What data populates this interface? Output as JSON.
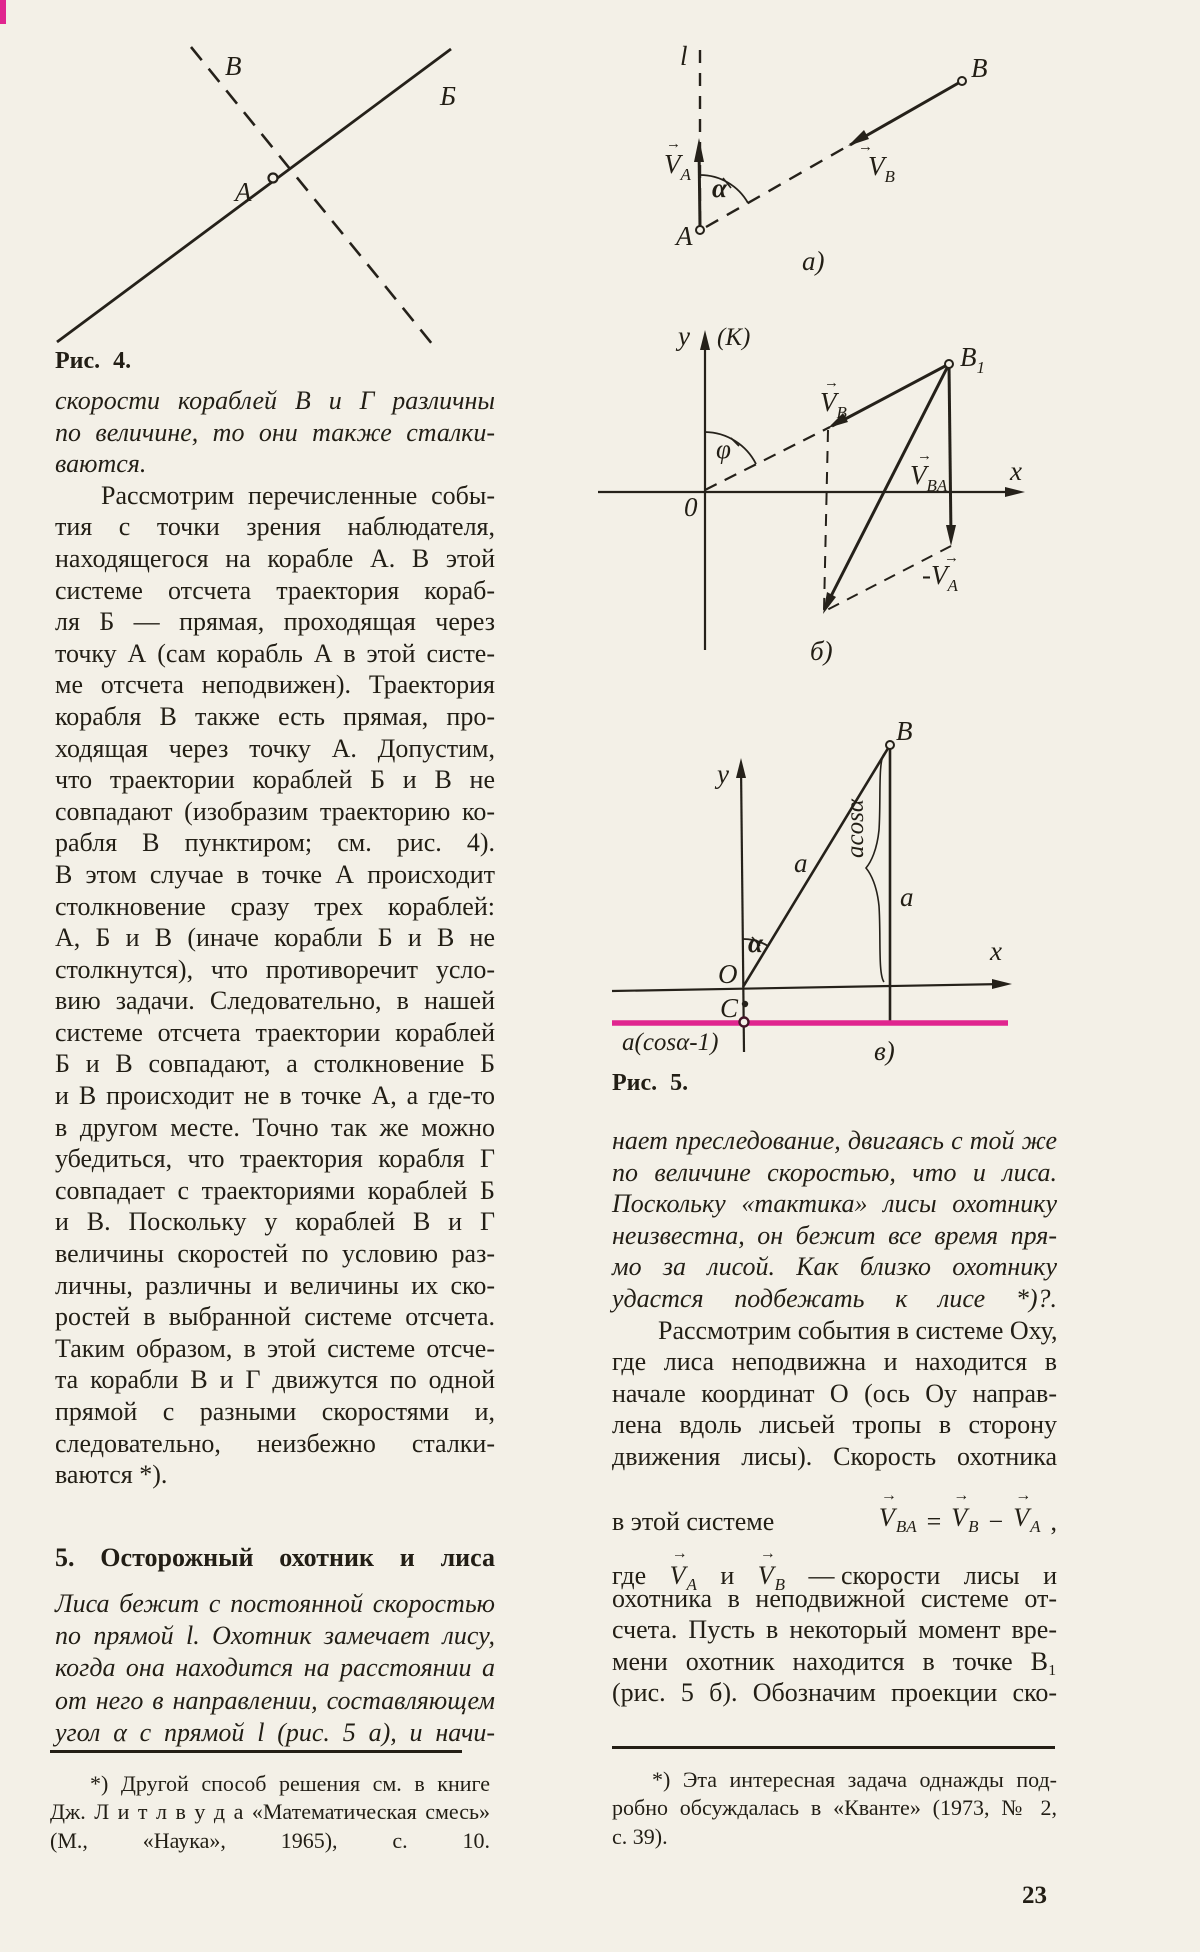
{
  "page": {
    "number": "23"
  },
  "icons": {
    "vec_arrow": "→"
  },
  "fig4": {
    "caption": "Рис. 4.",
    "label_dashed": "B",
    "label_solid": "Б",
    "label_point": "A"
  },
  "fig5_caption": "Рис. 5.",
  "fig5a": {
    "l": "l",
    "A": "A",
    "B": "B",
    "alpha": "α",
    "va_v": "V",
    "va_s": "A",
    "vb_v": "V",
    "vb_s": "B",
    "tag": "а)"
  },
  "fig5b": {
    "y": "y",
    "k": "(K)",
    "x": "x",
    "O": "0",
    "phi": "φ",
    "b1_v": "B",
    "b1_s": "1",
    "vb_v": "V",
    "vb_s": "B",
    "vba_v": "V",
    "vba_s": "BA",
    "mva_v": "-V",
    "mva_s": "A",
    "tag": "б)"
  },
  "fig5c": {
    "y": "y",
    "x": "x",
    "O": "O",
    "B": "B",
    "a_hyp": "a",
    "acos": "acosα",
    "a_right": "a",
    "alpha": "α",
    "C": "C",
    "acos1": "a(cosα-1)",
    "tag": "в)"
  },
  "left": {
    "p1": {
      "indent": false,
      "cont": false,
      "lines": [
        "скорости кораблей В и Г различны",
        "по величине, то они также сталки-",
        "ваются."
      ]
    },
    "p2": {
      "indent": true,
      "cont": false,
      "lines": [
        "Рассмотрим перечисленные собы-",
        "тия с точки зрения наблюдателя,",
        "находящегося на корабле А. В этой",
        "системе отсчета траектория кораб-",
        "ля Б — прямая, проходящая через",
        "точку А (сам корабль А в этой систе-",
        "ме отсчета неподвижен). Траектория",
        "корабля В также есть прямая, про-",
        "ходящая через точку А. Допустим,",
        "что траектории кораблей Б и В не",
        "совпадают (изобразим траекторию ко-",
        "рабля В пунктиром; см. рис. 4).",
        "В этом случае в точке А происходит",
        "столкновение сразу трех кораблей:",
        "А, Б и В (иначе корабли Б и В не",
        "столкнутся), что противоречит усло-",
        "вию задачи. Следовательно, в нашей",
        "системе отсчета траектории кораблей",
        "Б и В совпадают, а столкновение Б",
        "и В происходит не в точке А, а где-то",
        "в другом месте. Точно так же можно",
        "убедиться, что траектория корабля Г",
        "совпадает с траекториями кораблей Б",
        "и В. Поскольку у кораблей В и Г",
        "величины скоростей по условию раз-",
        "личны, различны и величины их ско-",
        "ростей в выбранной системе отсчета.",
        "Таким образом, в этой системе отсче-",
        "та корабли В и Г движутся по одной",
        "прямой с разными скоростями и,",
        "следовательно, неизбежно сталки-",
        "ваются *)."
      ]
    },
    "heading": "5. Осторожный охотник и лиса",
    "p3": {
      "indent": false,
      "cont": true,
      "lines": [
        "Лиса бежит с постоянной скоростью",
        "по прямой l. Охотник замечает лису,",
        "когда она находится на расстоянии a",
        "от него в направлении, составляющем",
        "угол α с прямой l (рис. 5 а), и начи-"
      ]
    },
    "footnote": {
      "indent": true,
      "cont": true,
      "lines": [
        "*) Другой способ решения см. в книге",
        "Дж. Л и т л в у д а «Математическая смесь»",
        "(М., «Наука», 1965), с. 10."
      ]
    }
  },
  "right": {
    "p1": {
      "indent": false,
      "cont": true,
      "lines": [
        "нает преследование, двигаясь с той же",
        "по величине скоростью, что и лиса.",
        "Поскольку «тактика» лисы охотнику",
        "неизвестна, он бежит все время пря-",
        "мо за лисой. Как близко охотнику",
        "удастся подбежать к лисе *)?."
      ]
    },
    "p2": {
      "indent": true,
      "cont": true,
      "lines": [
        "Рассмотрим события в системе Оху,",
        "где лиса неподвижна и находится в",
        "начале координат О (ось Оу направ-",
        "лена вдоль лисьей тропы в сторону",
        "движения лисы). Скорость охотника"
      ]
    },
    "formula": {
      "lead": "в этой системе",
      "tokens": [
        {
          "v": "V",
          "sub": "BA"
        },
        {
          "t": "="
        },
        {
          "v": "V",
          "sub": "B"
        },
        {
          "t": "−"
        },
        {
          "v": "V",
          "sub": "A"
        },
        {
          "t": ","
        }
      ]
    },
    "gde_tokens": [
      {
        "t": "где"
      },
      {
        "v": "V",
        "sub": "A"
      },
      {
        "t": "и"
      },
      {
        "v": "V",
        "sub": "B"
      },
      {
        "t": "— скорости"
      },
      {
        "t": "лисы"
      },
      {
        "t": "и"
      }
    ],
    "p3": {
      "indent": false,
      "cont": true,
      "lines": [
        "охотника в неподвижной системе от-",
        "счета. Пусть в некоторый момент вре-",
        "мени охотник находится в точке В₁",
        "(рис. 5 б). Обозначим проекции ско-"
      ]
    },
    "footnote": {
      "indent": true,
      "cont": false,
      "lines": [
        "*) Эта интересная задача однажды под-",
        "робно обсуждалась в «Кванте» (1973, № 2,",
        "с. 39)."
      ]
    }
  }
}
